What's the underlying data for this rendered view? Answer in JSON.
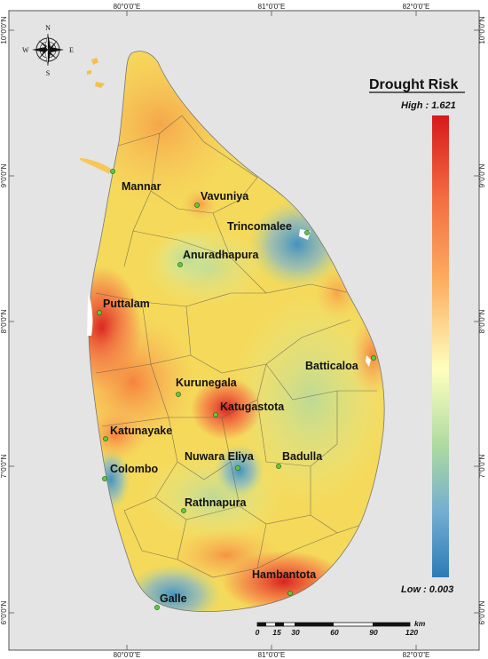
{
  "legend": {
    "title": "Drought Risk",
    "high_label": "High : 1.621",
    "low_label": "Low : 0.003",
    "colors": [
      "#d7191c",
      "#f4442b",
      "#fdae61",
      "#ffffbf",
      "#abd9e9",
      "#74add1",
      "#2c7bb6"
    ]
  },
  "axes": {
    "top": [
      "80°0'0\"E",
      "81°0'0\"E",
      "82°0'0\"E"
    ],
    "bottom": [
      "80°0'0\"E",
      "81°0'0\"E",
      "82°0'0\"E"
    ],
    "left": [
      "10°0'0\"N",
      "9°0'0\"N",
      "8°0'0\"N",
      "7°0'0\"N",
      "6°0'0\"N"
    ],
    "right": [
      "10°0'0\"N",
      "9°0'0\"N",
      "8°0'0\"N",
      "7°0'0\"N",
      "6°0'0\"N"
    ]
  },
  "compass": {
    "n": "N",
    "s": "S",
    "e": "E",
    "w": "W"
  },
  "cities": [
    {
      "name": "Mannar"
    },
    {
      "name": "Vavuniya"
    },
    {
      "name": "Trincomalee"
    },
    {
      "name": "Anuradhapura"
    },
    {
      "name": "Puttalam"
    },
    {
      "name": "Batticaloa"
    },
    {
      "name": "Kurunegala"
    },
    {
      "name": "Katugastota"
    },
    {
      "name": "Katunayake"
    },
    {
      "name": "Colombo"
    },
    {
      "name": "Nuwara Eliya"
    },
    {
      "name": "Badulla"
    },
    {
      "name": "Rathnapura"
    },
    {
      "name": "Hambantota"
    },
    {
      "name": "Galle"
    }
  ],
  "scale_bar": {
    "unit": "km",
    "labels": [
      "0",
      "15",
      "30",
      "60",
      "90",
      "120"
    ]
  }
}
